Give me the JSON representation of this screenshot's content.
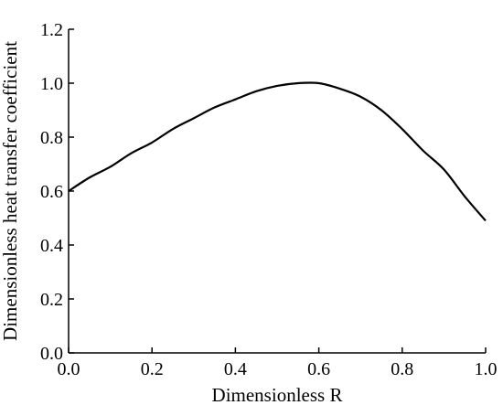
{
  "chart_data": {
    "type": "line",
    "xlabel": "Dimensionless R",
    "ylabel": "Dimensionless heat transfer coefficient",
    "xlim": [
      0.0,
      1.0
    ],
    "ylim": [
      0.0,
      1.2
    ],
    "grid": false,
    "x_ticks": [
      "0.0",
      "0.2",
      "0.4",
      "0.6",
      "0.8",
      "1.0"
    ],
    "y_ticks": [
      "0.0",
      "0.2",
      "0.4",
      "0.6",
      "0.8",
      "1.0",
      "1.2"
    ],
    "series": [
      {
        "color": "#000000",
        "x": [
          0.0,
          0.05,
          0.1,
          0.15,
          0.2,
          0.25,
          0.3,
          0.35,
          0.4,
          0.45,
          0.5,
          0.55,
          0.6,
          0.65,
          0.7,
          0.75,
          0.8,
          0.85,
          0.9,
          0.95,
          1.0
        ],
        "y": [
          0.6,
          0.65,
          0.69,
          0.74,
          0.78,
          0.83,
          0.87,
          0.91,
          0.94,
          0.97,
          0.99,
          1.0,
          1.0,
          0.98,
          0.95,
          0.9,
          0.83,
          0.75,
          0.68,
          0.58,
          0.49
        ]
      }
    ]
  }
}
